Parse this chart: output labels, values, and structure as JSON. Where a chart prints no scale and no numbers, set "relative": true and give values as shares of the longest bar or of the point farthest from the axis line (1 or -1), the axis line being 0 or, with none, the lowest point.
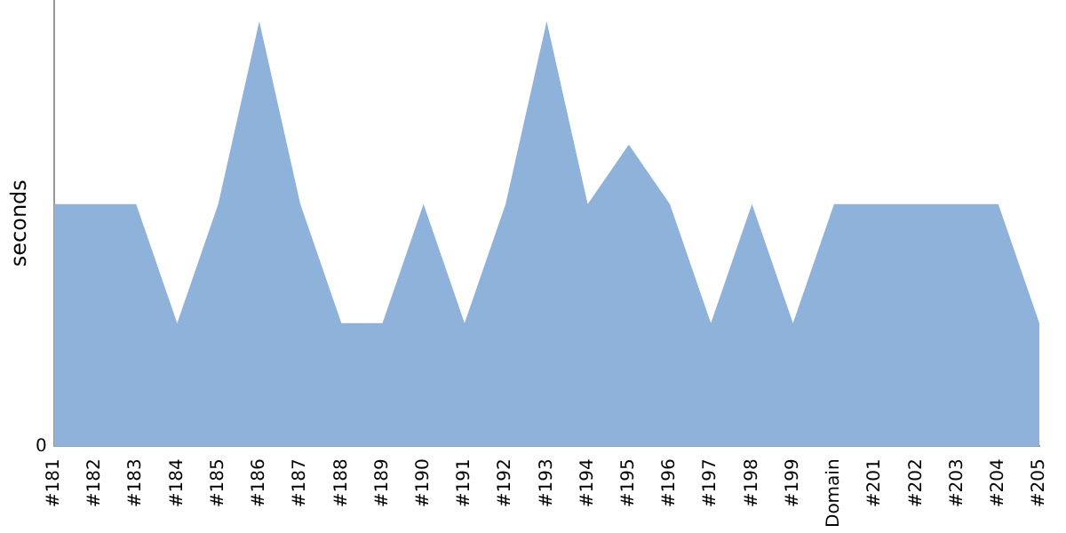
{
  "chart_data": {
    "type": "area",
    "ylabel": "seconds",
    "relative": true,
    "annotations": [
      "0"
    ],
    "categories": [
      "#181",
      "#182",
      "#183",
      "#184",
      "#185",
      "#186",
      "#187",
      "#188",
      "#189",
      "#190",
      "#191",
      "#192",
      "#193",
      "#194",
      "#195",
      "#196",
      "#197",
      "#198",
      "#199",
      "Domain",
      "#201",
      "#202",
      "#203",
      "#204",
      "#205"
    ],
    "series": [
      {
        "color": "#8fb2db",
        "values": [
          0.57,
          0.57,
          0.57,
          0.29,
          0.57,
          1,
          0.57,
          0.29,
          0.29,
          0.57,
          0.29,
          0.57,
          1,
          0.57,
          0.71,
          0.57,
          0.29,
          0.57,
          0.29,
          0.57,
          0.57,
          0.57,
          0.57,
          0.57,
          0.29
        ]
      }
    ],
    "grid": false,
    "legend": false
  }
}
